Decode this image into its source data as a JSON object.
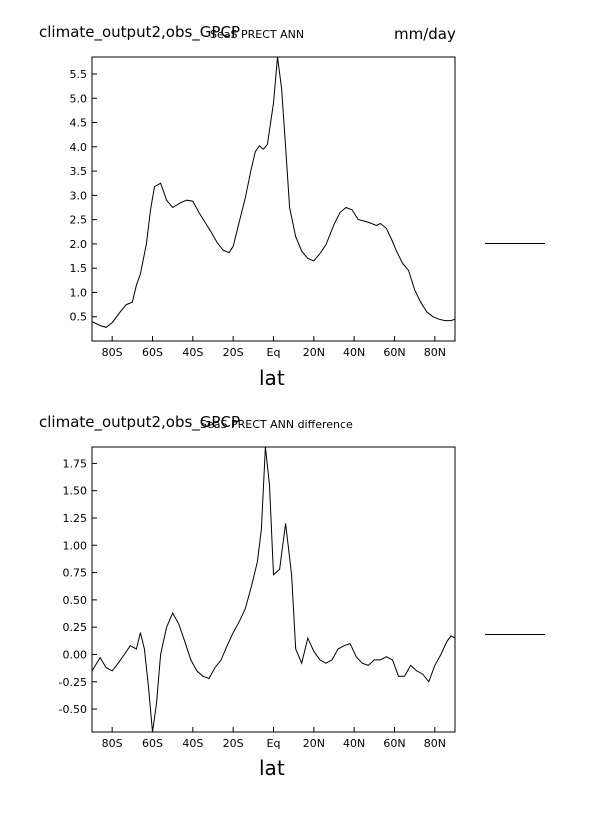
{
  "panels": [
    {
      "title": "climate_output2,obs_GPCP",
      "subtitle": "SeaS PRECT ANN",
      "units": "mm/day",
      "xlabel": "lat"
    },
    {
      "title": "climate_output2,obs_GPCP",
      "subtitle": "SeaS PRECT ANN difference",
      "units": "",
      "xlabel": "lat"
    }
  ],
  "chart_data": [
    {
      "type": "line",
      "title": "climate_output2,obs_GPCP",
      "subtitle": "SeaS PRECT ANN",
      "units": "mm/day",
      "xlabel": "lat",
      "ylabel": "",
      "xlim": [
        -90,
        90
      ],
      "ylim": [
        0.0,
        5.85
      ],
      "xticks": [
        -80,
        -60,
        -40,
        -20,
        0,
        20,
        40,
        60,
        80
      ],
      "xtick_labels": [
        "80S",
        "60S",
        "40S",
        "20S",
        "Eq",
        "20N",
        "40N",
        "60N",
        "80N"
      ],
      "yticks": [
        0.5,
        1.0,
        1.5,
        2.0,
        2.5,
        3.0,
        3.5,
        4.0,
        4.5,
        5.0,
        5.5
      ],
      "ytick_labels": [
        "0.5",
        "1.0",
        "1.5",
        "2.0",
        "2.5",
        "3.0",
        "3.5",
        "4.0",
        "4.5",
        "5.0",
        "5.5"
      ],
      "grid": false,
      "color": "#000000",
      "series": [
        {
          "x": [
            -90,
            -86,
            -83,
            -80,
            -76,
            -73,
            -70,
            -68,
            -66,
            -63,
            -61,
            -59,
            -56,
            -53,
            -50,
            -46,
            -43,
            -40,
            -37,
            -34,
            -31,
            -28,
            -25,
            -22,
            -20,
            -17,
            -14,
            -11,
            -9,
            -7,
            -5,
            -3,
            0,
            2,
            4,
            6,
            8,
            11,
            14,
            17,
            20,
            23,
            26,
            30,
            33,
            36,
            39,
            42,
            45,
            48,
            51,
            53,
            56,
            59,
            61,
            64,
            67,
            70,
            73,
            76,
            79,
            82,
            85,
            88,
            90
          ],
          "values": [
            0.4,
            0.32,
            0.28,
            0.38,
            0.6,
            0.75,
            0.8,
            1.15,
            1.38,
            2.0,
            2.7,
            3.18,
            3.25,
            2.9,
            2.75,
            2.85,
            2.9,
            2.88,
            2.65,
            2.45,
            2.25,
            2.03,
            1.87,
            1.82,
            1.95,
            2.45,
            2.95,
            3.55,
            3.9,
            4.02,
            3.95,
            4.05,
            4.9,
            5.85,
            5.2,
            4.0,
            2.75,
            2.15,
            1.85,
            1.7,
            1.65,
            1.8,
            1.98,
            2.4,
            2.65,
            2.75,
            2.7,
            2.5,
            2.47,
            2.43,
            2.38,
            2.42,
            2.32,
            2.05,
            1.85,
            1.6,
            1.45,
            1.05,
            0.8,
            0.6,
            0.5,
            0.45,
            0.42,
            0.42,
            0.45
          ]
        }
      ]
    },
    {
      "type": "line",
      "title": "climate_output2,obs_GPCP",
      "subtitle": "SeaS PRECT ANN difference",
      "units": "",
      "xlabel": "lat",
      "ylabel": "",
      "xlim": [
        -90,
        90
      ],
      "ylim": [
        -0.71,
        1.9
      ],
      "xticks": [
        -80,
        -60,
        -40,
        -20,
        0,
        20,
        40,
        60,
        80
      ],
      "xtick_labels": [
        "80S",
        "60S",
        "40S",
        "20S",
        "Eq",
        "20N",
        "40N",
        "60N",
        "80N"
      ],
      "yticks": [
        -0.5,
        -0.25,
        0.0,
        0.25,
        0.5,
        0.75,
        1.0,
        1.25,
        1.5,
        1.75
      ],
      "ytick_labels": [
        "-0.50",
        "-0.25",
        "0.00",
        "0.25",
        "0.50",
        "0.75",
        "1.00",
        "1.25",
        "1.50",
        "1.75"
      ],
      "grid": false,
      "color": "#000000",
      "series": [
        {
          "x": [
            -90,
            -86,
            -83,
            -80,
            -77,
            -74,
            -71,
            -68,
            -66,
            -64,
            -62,
            -60,
            -58,
            -56,
            -53,
            -50,
            -47,
            -44,
            -41,
            -38,
            -35,
            -32,
            -29,
            -26,
            -23,
            -20,
            -17,
            -14,
            -11,
            -8,
            -6,
            -4,
            -2,
            0,
            3,
            6,
            9,
            11,
            14,
            17,
            20,
            23,
            26,
            29,
            32,
            35,
            38,
            41,
            44,
            47,
            50,
            53,
            56,
            59,
            62,
            65,
            68,
            71,
            74,
            77,
            80,
            83,
            86,
            88,
            90
          ],
          "values": [
            -0.15,
            -0.03,
            -0.12,
            -0.15,
            -0.08,
            0.0,
            0.08,
            0.05,
            0.2,
            0.05,
            -0.3,
            -0.71,
            -0.45,
            0.0,
            0.25,
            0.38,
            0.28,
            0.12,
            -0.05,
            -0.15,
            -0.2,
            -0.22,
            -0.12,
            -0.05,
            0.08,
            0.2,
            0.3,
            0.42,
            0.62,
            0.85,
            1.15,
            1.9,
            1.55,
            0.73,
            0.78,
            1.2,
            0.73,
            0.05,
            -0.08,
            0.15,
            0.03,
            -0.05,
            -0.08,
            -0.05,
            0.05,
            0.08,
            0.1,
            -0.02,
            -0.08,
            -0.1,
            -0.05,
            -0.05,
            -0.02,
            -0.05,
            -0.2,
            -0.2,
            -0.1,
            -0.15,
            -0.18,
            -0.25,
            -0.1,
            0.0,
            0.12,
            0.17,
            0.15
          ]
        }
      ]
    }
  ]
}
